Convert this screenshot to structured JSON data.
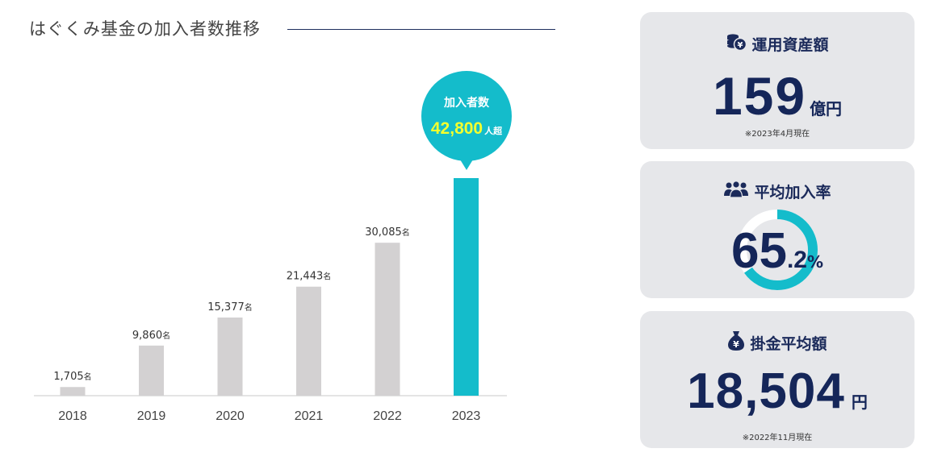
{
  "chart": {
    "title": "はぐくみ基金の加入者数推移",
    "bubble": {
      "title": "加入者数",
      "value": "42,800",
      "unit": "人超"
    }
  },
  "chart_data": {
    "type": "bar",
    "categories": [
      "2018",
      "2019",
      "2020",
      "2021",
      "2022",
      "2023"
    ],
    "values": [
      1705,
      9860,
      15377,
      21443,
      30085,
      42800
    ],
    "value_labels": [
      "1,705",
      "9,860",
      "15,377",
      "21,443",
      "30,085",
      ""
    ],
    "value_unit": "名",
    "highlight_index": 5,
    "colors": {
      "bar": "#d3d1d2",
      "highlight": "#14bccb"
    },
    "title": "はぐくみ基金の加入者数推移",
    "xlabel": "",
    "ylabel": "",
    "ylim": [
      0,
      42800
    ]
  },
  "cards": {
    "assets": {
      "title": "運用資産額",
      "icon": "coins-yen-icon",
      "value": "159",
      "unit": "億円",
      "note": "※2023年4月現在"
    },
    "rate": {
      "title": "平均加入率",
      "icon": "people-group-icon",
      "value_int": "65",
      "value_dec": ".2",
      "unit": "%",
      "percent": 65.2
    },
    "contrib": {
      "title": "掛金平均額",
      "icon": "money-bag-yen-icon",
      "value": "18,504",
      "unit": "円",
      "note": "※2022年11月現在"
    }
  },
  "colors": {
    "navy": "#152659",
    "teal": "#14bccb",
    "card_bg": "#e6e7ea",
    "bubble_value": "#f3ff2e"
  }
}
